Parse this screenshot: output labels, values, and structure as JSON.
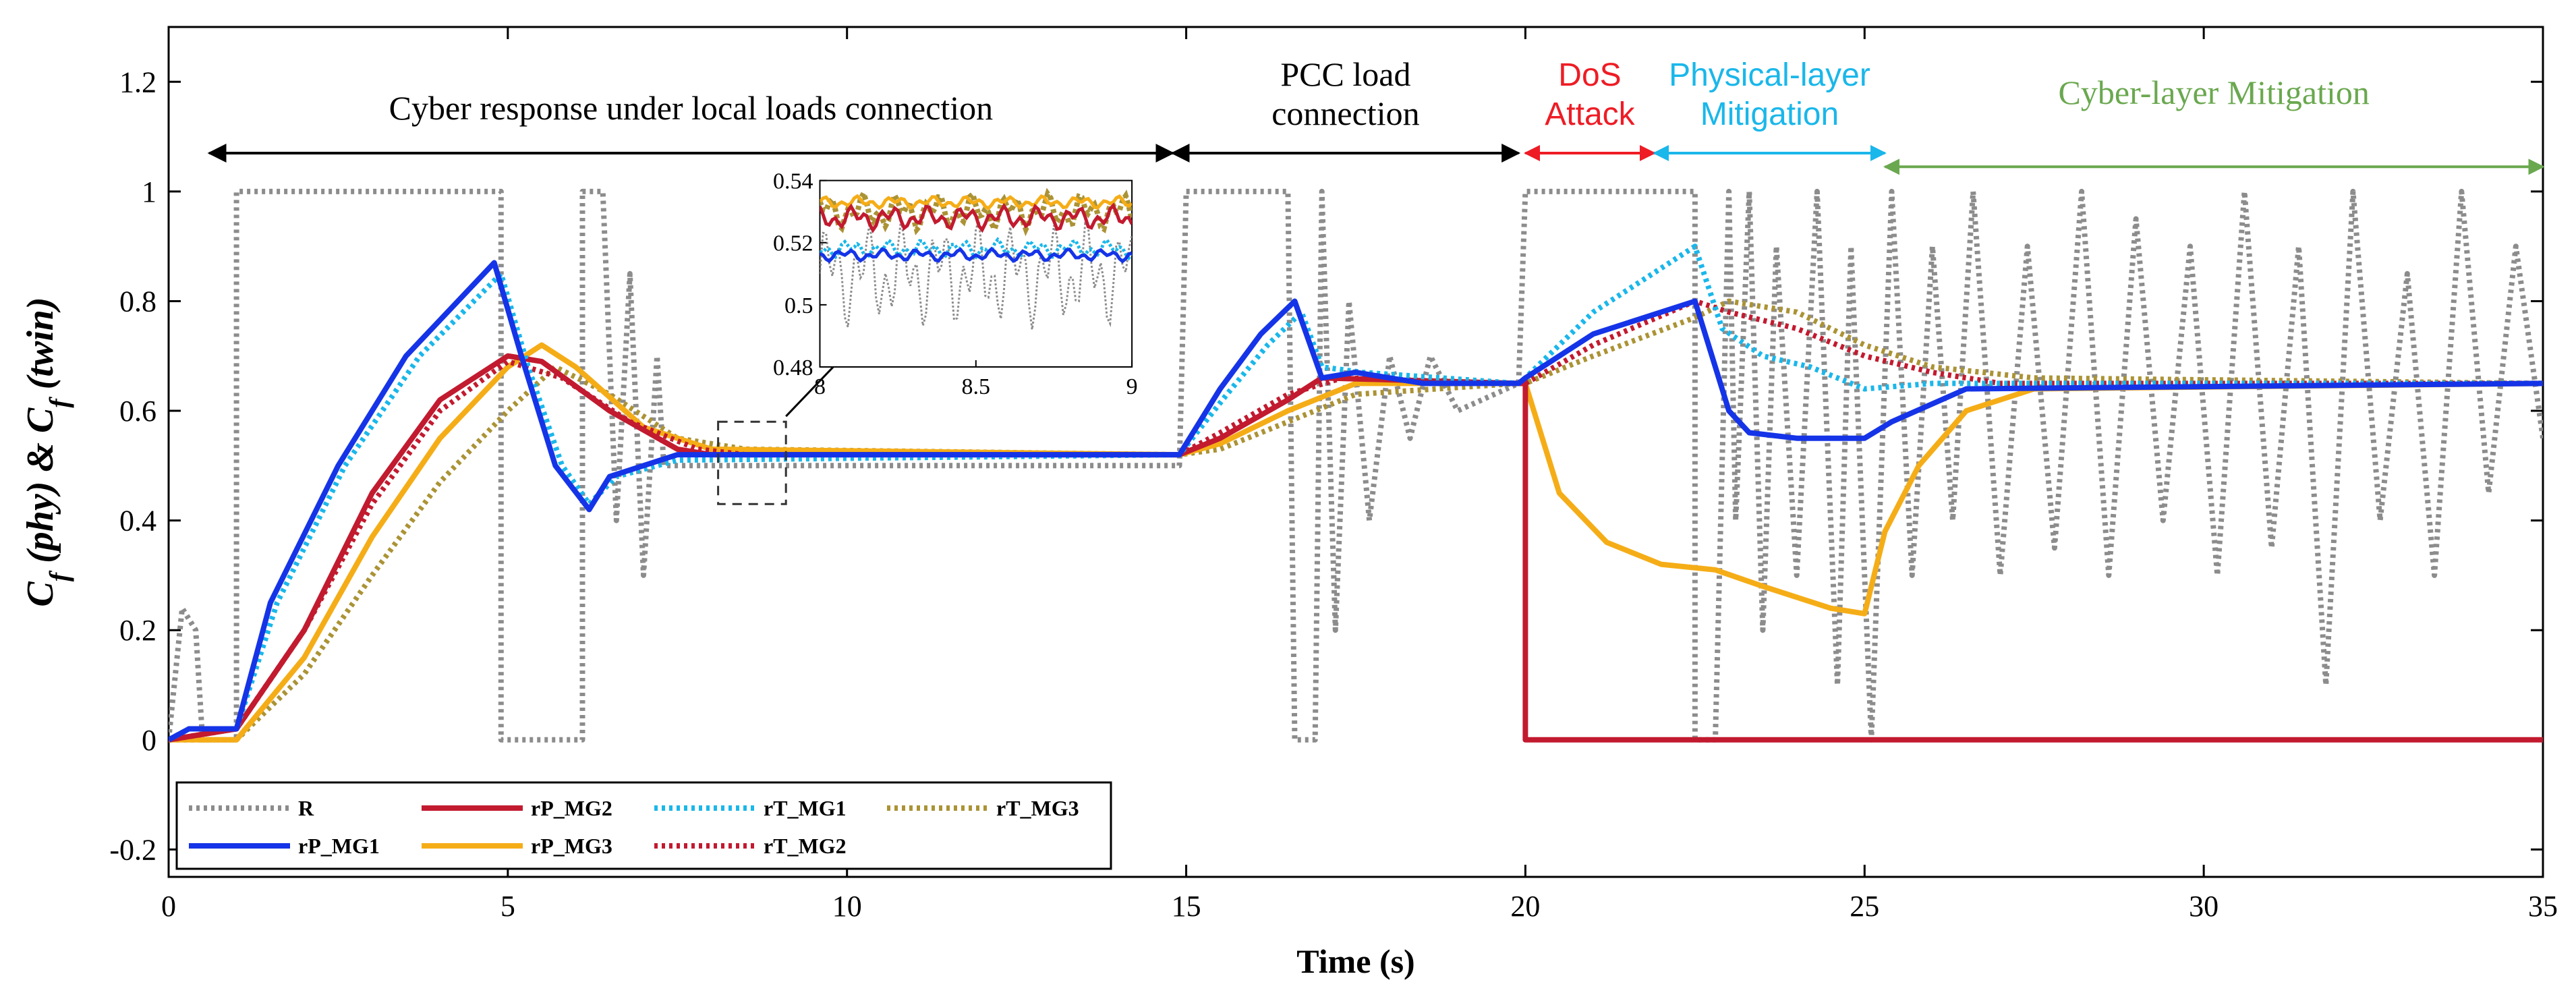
{
  "chart_data": {
    "type": "line",
    "xlabel": "Time (s)",
    "ylabel": "C_f (phy) & C_f (twin)",
    "ylabel_parts": {
      "c1": "C",
      "s1": "f",
      "mid": " (phy) & ",
      "c2": "C",
      "s2": "f",
      "end": " (twin)"
    },
    "xlim": [
      0,
      35
    ],
    "ylim": [
      -0.25,
      1.3
    ],
    "xticks": [
      0,
      5,
      10,
      15,
      20,
      25,
      30,
      35
    ],
    "yticks": [
      -0.2,
      0,
      0.2,
      0.4,
      0.6,
      0.8,
      1,
      1.2
    ],
    "ytick_labels": [
      "-0.2",
      "0",
      "0.2",
      "0.4",
      "0.6",
      "0.8",
      "1",
      "1.2"
    ],
    "annotations": [
      {
        "id": "local",
        "lines": [
          "Cyber response under local loads connection"
        ],
        "x0": 0.6,
        "x1": 14.8,
        "color": "#000000"
      },
      {
        "id": "pcc",
        "lines": [
          "PCC load",
          "connection"
        ],
        "x0": 14.8,
        "x1": 19.9,
        "color": "#000000"
      },
      {
        "id": "dos",
        "lines": [
          "DoS",
          "Attack"
        ],
        "x0": 20.0,
        "x1": 21.9,
        "color": "#ee1c25"
      },
      {
        "id": "phys",
        "lines": [
          "Physical-layer",
          "Mitigation"
        ],
        "x0": 21.9,
        "x1": 25.3,
        "color": "#1ab7ea"
      },
      {
        "id": "cyber",
        "lines": [
          "Cyber-layer Mitigation"
        ],
        "x0": 25.3,
        "x1": 35,
        "color": "#6aa84f"
      }
    ],
    "series": [
      {
        "name": "R",
        "color": "#8c8c8c",
        "dash": "dotted",
        "values": [
          [
            0,
            0
          ],
          [
            0.2,
            0.24
          ],
          [
            0.4,
            0.2
          ],
          [
            0.5,
            0
          ],
          [
            1.0,
            0
          ],
          [
            1.0,
            1
          ],
          [
            4.9,
            1
          ],
          [
            4.9,
            0
          ],
          [
            6.1,
            0
          ],
          [
            6.1,
            1
          ],
          [
            6.4,
            1
          ],
          [
            6.6,
            0.4
          ],
          [
            6.8,
            0.85
          ],
          [
            7.0,
            0.3
          ],
          [
            7.2,
            0.7
          ],
          [
            7.3,
            0.5
          ],
          [
            14.9,
            0.5
          ],
          [
            15.0,
            1
          ],
          [
            16.5,
            1
          ],
          [
            16.6,
            0
          ],
          [
            16.9,
            0
          ],
          [
            17.0,
            1
          ],
          [
            17.2,
            0.2
          ],
          [
            17.4,
            0.8
          ],
          [
            17.7,
            0.4
          ],
          [
            18.0,
            0.7
          ],
          [
            18.3,
            0.55
          ],
          [
            18.6,
            0.7
          ],
          [
            19.0,
            0.6
          ],
          [
            19.9,
            0.65
          ],
          [
            20.0,
            1
          ],
          [
            22.5,
            1
          ],
          [
            22.5,
            0
          ],
          [
            22.8,
            0
          ],
          [
            23.0,
            1
          ],
          [
            23.1,
            0.4
          ],
          [
            23.3,
            1
          ],
          [
            23.5,
            0.2
          ],
          [
            23.7,
            0.9
          ],
          [
            24.0,
            0.3
          ],
          [
            24.3,
            1
          ],
          [
            24.6,
            0.1
          ],
          [
            24.8,
            0.9
          ],
          [
            25.1,
            0
          ],
          [
            25.4,
            1
          ],
          [
            25.7,
            0.3
          ],
          [
            26.0,
            0.9
          ],
          [
            26.3,
            0.4
          ],
          [
            26.6,
            1
          ],
          [
            27.0,
            0.3
          ],
          [
            27.4,
            0.9
          ],
          [
            27.8,
            0.35
          ],
          [
            28.2,
            1
          ],
          [
            28.6,
            0.3
          ],
          [
            29.0,
            0.95
          ],
          [
            29.4,
            0.4
          ],
          [
            29.8,
            0.9
          ],
          [
            30.2,
            0.3
          ],
          [
            30.6,
            1
          ],
          [
            31.0,
            0.35
          ],
          [
            31.4,
            0.9
          ],
          [
            31.8,
            0.1
          ],
          [
            32.2,
            1
          ],
          [
            32.6,
            0.4
          ],
          [
            33.0,
            0.85
          ],
          [
            33.4,
            0.3
          ],
          [
            33.8,
            1
          ],
          [
            34.2,
            0.45
          ],
          [
            34.6,
            0.9
          ],
          [
            35.0,
            0.55
          ]
        ]
      },
      {
        "name": "rP_MG1",
        "color": "#1534e8",
        "dash": "solid",
        "values": [
          [
            0,
            0
          ],
          [
            0.3,
            0.02
          ],
          [
            1.0,
            0.02
          ],
          [
            1.5,
            0.25
          ],
          [
            2.5,
            0.5
          ],
          [
            3.5,
            0.7
          ],
          [
            4.8,
            0.87
          ],
          [
            5.2,
            0.7
          ],
          [
            5.7,
            0.5
          ],
          [
            6.2,
            0.42
          ],
          [
            6.5,
            0.48
          ],
          [
            7.0,
            0.5
          ],
          [
            7.5,
            0.52
          ],
          [
            14.9,
            0.52
          ],
          [
            15.5,
            0.64
          ],
          [
            16.1,
            0.74
          ],
          [
            16.6,
            0.8
          ],
          [
            17.0,
            0.66
          ],
          [
            17.5,
            0.67
          ],
          [
            18.5,
            0.65
          ],
          [
            19.9,
            0.65
          ],
          [
            20.0,
            0.66
          ],
          [
            21.0,
            0.74
          ],
          [
            22.5,
            0.8
          ],
          [
            23.0,
            0.6
          ],
          [
            23.3,
            0.56
          ],
          [
            24.0,
            0.55
          ],
          [
            25.0,
            0.55
          ],
          [
            25.4,
            0.58
          ],
          [
            26.5,
            0.64
          ],
          [
            35,
            0.65
          ]
        ]
      },
      {
        "name": "rP_MG2",
        "color": "#c21a2f",
        "dash": "solid",
        "values": [
          [
            0,
            0
          ],
          [
            1.0,
            0.02
          ],
          [
            2.0,
            0.2
          ],
          [
            3.0,
            0.45
          ],
          [
            4.0,
            0.62
          ],
          [
            5.0,
            0.7
          ],
          [
            5.5,
            0.69
          ],
          [
            6.5,
            0.6
          ],
          [
            7.5,
            0.53
          ],
          [
            8.0,
            0.52
          ],
          [
            14.9,
            0.52
          ],
          [
            15.5,
            0.55
          ],
          [
            16.5,
            0.62
          ],
          [
            17.0,
            0.66
          ],
          [
            19.9,
            0.65
          ],
          [
            20.0,
            0.65
          ],
          [
            20.0,
            0.0
          ],
          [
            35,
            0.0
          ]
        ]
      },
      {
        "name": "rP_MG3",
        "color": "#f5ad17",
        "dash": "solid",
        "values": [
          [
            0,
            0
          ],
          [
            1.0,
            0.0
          ],
          [
            2.0,
            0.15
          ],
          [
            3.0,
            0.37
          ],
          [
            4.0,
            0.55
          ],
          [
            5.0,
            0.68
          ],
          [
            5.5,
            0.72
          ],
          [
            6.0,
            0.68
          ],
          [
            7.0,
            0.57
          ],
          [
            8.0,
            0.53
          ],
          [
            14.9,
            0.52
          ],
          [
            15.5,
            0.54
          ],
          [
            16.5,
            0.6
          ],
          [
            17.5,
            0.65
          ],
          [
            19.9,
            0.65
          ],
          [
            20.0,
            0.65
          ],
          [
            20.5,
            0.45
          ],
          [
            21.2,
            0.36
          ],
          [
            22.0,
            0.32
          ],
          [
            22.8,
            0.31
          ],
          [
            23.5,
            0.28
          ],
          [
            24.5,
            0.24
          ],
          [
            25.0,
            0.23
          ],
          [
            25.3,
            0.38
          ],
          [
            25.8,
            0.5
          ],
          [
            26.5,
            0.6
          ],
          [
            27.5,
            0.64
          ],
          [
            35,
            0.65
          ]
        ]
      },
      {
        "name": "rT_MG1",
        "color": "#1ab7ea",
        "dash": "dotted",
        "values": [
          [
            0,
            0
          ],
          [
            0.3,
            0.02
          ],
          [
            1.0,
            0.02
          ],
          [
            1.6,
            0.25
          ],
          [
            2.6,
            0.5
          ],
          [
            3.7,
            0.7
          ],
          [
            4.9,
            0.85
          ],
          [
            5.3,
            0.68
          ],
          [
            5.8,
            0.5
          ],
          [
            6.2,
            0.43
          ],
          [
            6.6,
            0.48
          ],
          [
            7.5,
            0.51
          ],
          [
            14.9,
            0.52
          ],
          [
            15.6,
            0.63
          ],
          [
            16.2,
            0.72
          ],
          [
            16.7,
            0.78
          ],
          [
            17.0,
            0.68
          ],
          [
            17.6,
            0.67
          ],
          [
            19.9,
            0.65
          ],
          [
            20.0,
            0.66
          ],
          [
            21.0,
            0.78
          ],
          [
            22.0,
            0.86
          ],
          [
            22.5,
            0.9
          ],
          [
            22.9,
            0.75
          ],
          [
            23.5,
            0.7
          ],
          [
            24.2,
            0.68
          ],
          [
            25.0,
            0.64
          ],
          [
            26.0,
            0.65
          ],
          [
            35,
            0.65
          ]
        ]
      },
      {
        "name": "rT_MG2",
        "color": "#c21a2f",
        "dash": "dotted",
        "values": [
          [
            0,
            0
          ],
          [
            1.0,
            0.02
          ],
          [
            2.0,
            0.2
          ],
          [
            3.0,
            0.43
          ],
          [
            4.0,
            0.6
          ],
          [
            5.0,
            0.69
          ],
          [
            5.8,
            0.66
          ],
          [
            6.8,
            0.58
          ],
          [
            7.8,
            0.53
          ],
          [
            8.5,
            0.52
          ],
          [
            14.9,
            0.52
          ],
          [
            15.5,
            0.56
          ],
          [
            16.5,
            0.63
          ],
          [
            17.3,
            0.66
          ],
          [
            19.9,
            0.65
          ],
          [
            20.0,
            0.65
          ],
          [
            21.0,
            0.72
          ],
          [
            22.5,
            0.8
          ],
          [
            23.0,
            0.78
          ],
          [
            24.0,
            0.75
          ],
          [
            25.0,
            0.7
          ],
          [
            26.0,
            0.67
          ],
          [
            27.0,
            0.65
          ],
          [
            35,
            0.65
          ]
        ]
      },
      {
        "name": "rT_MG3",
        "color": "#ab9335",
        "dash": "dotted",
        "values": [
          [
            0,
            0
          ],
          [
            1.0,
            0.0
          ],
          [
            2.0,
            0.12
          ],
          [
            3.0,
            0.3
          ],
          [
            4.0,
            0.47
          ],
          [
            5.0,
            0.6
          ],
          [
            5.7,
            0.68
          ],
          [
            6.5,
            0.63
          ],
          [
            7.5,
            0.55
          ],
          [
            8.5,
            0.53
          ],
          [
            14.9,
            0.52
          ],
          [
            15.5,
            0.53
          ],
          [
            16.5,
            0.58
          ],
          [
            17.5,
            0.63
          ],
          [
            19.9,
            0.65
          ],
          [
            20.0,
            0.65
          ],
          [
            21.0,
            0.7
          ],
          [
            22.5,
            0.77
          ],
          [
            23.0,
            0.8
          ],
          [
            24.0,
            0.78
          ],
          [
            25.0,
            0.72
          ],
          [
            26.0,
            0.68
          ],
          [
            27.5,
            0.66
          ],
          [
            35,
            0.65
          ]
        ]
      }
    ],
    "inset": {
      "xlim": [
        8,
        9
      ],
      "ylim": [
        0.48,
        0.54
      ],
      "xticks": [
        8,
        8.5,
        9
      ],
      "yticks": [
        0.48,
        0.5,
        0.52,
        0.54
      ],
      "ytick_labels": [
        "0.48",
        "0.5",
        "0.52",
        "0.54"
      ]
    }
  }
}
